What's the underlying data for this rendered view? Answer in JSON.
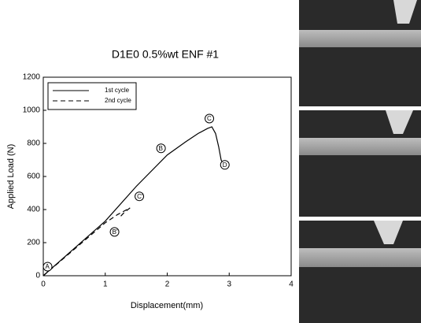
{
  "chart_data": {
    "type": "line",
    "title": "D1E0 0.5%wt ENF #1",
    "xlabel": "Displacement(mm)",
    "ylabel": "Applied Load (N)",
    "xlim": [
      0,
      4
    ],
    "xticks": [
      0,
      1,
      2,
      3,
      4
    ],
    "ylim": [
      0,
      1200
    ],
    "yticks": [
      0,
      200,
      400,
      600,
      800,
      1000,
      1200
    ],
    "legend": "upper left",
    "series": [
      {
        "name": "1st cycle",
        "color": "#000000",
        "dash": false,
        "x": [
          0,
          0.5,
          1,
          1.5,
          2,
          2.3,
          2.5,
          2.65,
          2.72,
          2.78,
          2.83,
          2.87,
          2.9
        ],
        "values": [
          0,
          165,
          330,
          540,
          730,
          810,
          860,
          890,
          900,
          860,
          780,
          700,
          680
        ]
      },
      {
        "name": "2nd cycle",
        "color": "#000000",
        "dash": true,
        "x": [
          0,
          0.5,
          1,
          1.2,
          1.4,
          1.3,
          1.25
        ],
        "values": [
          0,
          160,
          320,
          370,
          410,
          380,
          360
        ]
      }
    ],
    "annotations": [
      {
        "text": "A",
        "x": 0.07,
        "y": 55
      },
      {
        "text": "B",
        "x": 1.9,
        "y": 770
      },
      {
        "text": "C",
        "x": 2.68,
        "y": 950
      },
      {
        "text": "D",
        "x": 2.93,
        "y": 670
      },
      {
        "text": "B'",
        "x": 1.15,
        "y": 265
      },
      {
        "text": "C'",
        "x": 1.55,
        "y": 480
      }
    ]
  }
}
